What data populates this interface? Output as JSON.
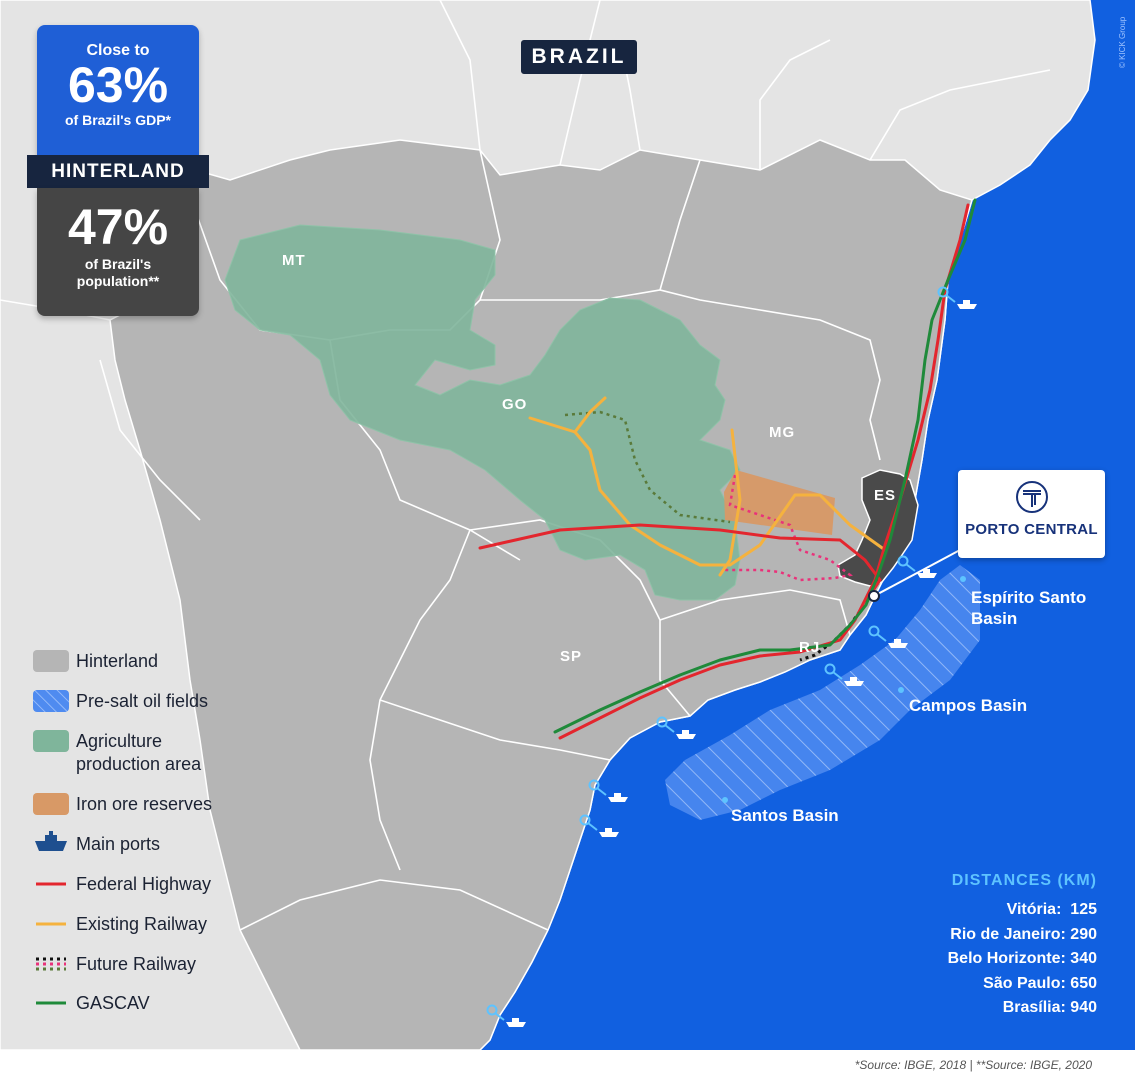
{
  "title_tag": "BRAZIL",
  "gdp_card": {
    "top": "Close to",
    "value": "63%",
    "caption": "of Brazil's GDP*"
  },
  "hinterland_label": "HINTERLAND",
  "population_card": {
    "value": "47%",
    "caption_line1": "of Brazil's",
    "caption_line2": "population**"
  },
  "state_labels": {
    "mt": "MT",
    "go": "GO",
    "mg": "MG",
    "es": "ES",
    "rj": "RJ",
    "sp": "SP"
  },
  "port_logo": {
    "name": "PORTO CENTRAL",
    "icon": "porto-central-logo-icon"
  },
  "basins": {
    "espirito_santo_line1": "Espírito Santo",
    "espirito_santo_line2": "Basin",
    "campos": "Campos Basin",
    "santos": "Santos Basin"
  },
  "legend": {
    "hinterland": "Hinterland",
    "presalt": "Pre-salt oil fields",
    "agri_line1": "Agriculture",
    "agri_line2": "production area",
    "iron": "Iron ore reserves",
    "ports": "Main ports",
    "highway": "Federal Highway",
    "railway": "Existing Railway",
    "future_railway": "Future Railway",
    "gascav": "GASCAV"
  },
  "distances": {
    "title": "DISTANCES (KM)",
    "rows": [
      {
        "city": "Vitória:",
        "km": "125"
      },
      {
        "city": "Rio de Janeiro:",
        "km": "290"
      },
      {
        "city": "Belo Horizonte:",
        "km": "340"
      },
      {
        "city": "São Paulo:",
        "km": "650"
      },
      {
        "city": "Brasília:",
        "km": "940"
      }
    ]
  },
  "copyright": "© KICK Group",
  "sources": "*Source: IBGE, 2018 | **Source: IBGE, 2020",
  "colors": {
    "ocean": "#1160e0",
    "land": "#e4e4e4",
    "hinterland": "#b5b5b5",
    "espirito_santo": "#4a4a4a",
    "agriculture": "#7fb59b",
    "iron": "#d89966",
    "highway": "#e3262e",
    "railway": "#f5b23e",
    "future_railway_agri": "#5a7a3a",
    "future_railway_mg": "#e9327a",
    "gascav": "#1f8a3a",
    "port": "#1e4f8f"
  }
}
